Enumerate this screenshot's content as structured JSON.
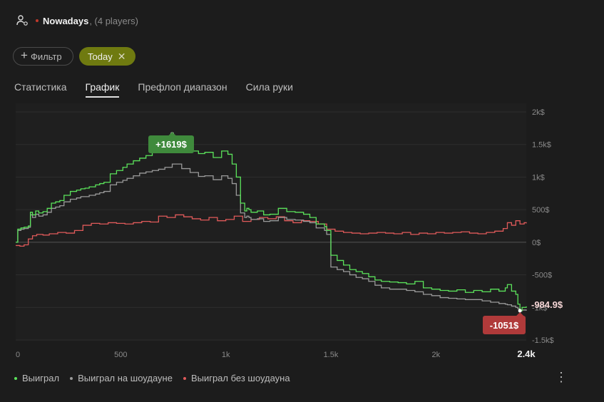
{
  "header": {
    "title": "Nowadays",
    "subtitle": ", (4 players)",
    "icon": "players-settings-icon"
  },
  "filters": {
    "filter_label": "Фильтр",
    "today_label": "Today"
  },
  "tabs": [
    {
      "label": "Статистика",
      "active": false
    },
    {
      "label": "График",
      "active": true
    },
    {
      "label": "Префлоп диапазон",
      "active": false
    },
    {
      "label": "Сила руки",
      "active": false
    }
  ],
  "legend": [
    {
      "label": "Выиграл",
      "color": "#5be35b"
    },
    {
      "label": "Выиграл на шоудауне",
      "color": "#9a9a9a"
    },
    {
      "label": "Выиграл без шоудауна",
      "color": "#e05a5a"
    }
  ],
  "chart_data": {
    "type": "line",
    "x_ticks": [
      "0",
      "500",
      "1k",
      "1.5k",
      "2k",
      "2.4k"
    ],
    "y_ticks": [
      "2k$",
      "1.5k$",
      "1k$",
      "500$",
      "0$",
      "-500$",
      "-1k$",
      "-1.5k$"
    ],
    "xlim": [
      0,
      2430
    ],
    "ylim": [
      -1500,
      2000
    ],
    "grid": true,
    "max_marker": {
      "x": 745,
      "y": 1619,
      "label": "+1619$"
    },
    "min_marker": {
      "x": 2400,
      "y": -1051,
      "label": "-1051$"
    },
    "end_label": "-984.9$",
    "series": [
      {
        "name": "Выиграл",
        "color": "#5be35b",
        "x": [
          0,
          10,
          25,
          40,
          60,
          70,
          80,
          95,
          110,
          130,
          150,
          170,
          190,
          210,
          230,
          260,
          290,
          310,
          330,
          350,
          380,
          400,
          420,
          450,
          480,
          510,
          530,
          560,
          590,
          620,
          650,
          680,
          710,
          745,
          790,
          830,
          870,
          900,
          940,
          980,
          1010,
          1030,
          1050,
          1070,
          1090,
          1100,
          1110,
          1120,
          1150,
          1180,
          1210,
          1250,
          1290,
          1330,
          1370,
          1400,
          1430,
          1470,
          1480,
          1500,
          1530,
          1560,
          1590,
          1620,
          1650,
          1680,
          1710,
          1740,
          1780,
          1820,
          1860,
          1900,
          1940,
          1980,
          2020,
          2060,
          2100,
          2140,
          2180,
          2220,
          2260,
          2300,
          2330,
          2340,
          2360,
          2380,
          2390,
          2400,
          2410,
          2430
        ],
        "y": [
          0,
          200,
          220,
          230,
          250,
          460,
          420,
          480,
          450,
          470,
          520,
          600,
          620,
          640,
          720,
          780,
          800,
          820,
          830,
          850,
          880,
          900,
          920,
          1050,
          1100,
          1150,
          1200,
          1250,
          1290,
          1330,
          1380,
          1420,
          1500,
          1619,
          1480,
          1400,
          1360,
          1380,
          1300,
          1400,
          1350,
          1200,
          1000,
          600,
          480,
          520,
          500,
          460,
          480,
          420,
          430,
          520,
          470,
          460,
          430,
          380,
          280,
          240,
          180,
          -200,
          -280,
          -350,
          -420,
          -450,
          -480,
          -530,
          -580,
          -600,
          -610,
          -620,
          -640,
          -600,
          -700,
          -720,
          -740,
          -750,
          -730,
          -770,
          -740,
          -760,
          -720,
          -750,
          -700,
          -650,
          -750,
          -800,
          -950,
          -1051,
          -1000,
          -985
        ]
      },
      {
        "name": "Выиграл на шоудауне",
        "color": "#9a9a9a",
        "x": [
          0,
          10,
          25,
          40,
          60,
          70,
          80,
          95,
          110,
          130,
          150,
          170,
          190,
          210,
          230,
          260,
          290,
          310,
          330,
          350,
          380,
          400,
          420,
          450,
          480,
          510,
          530,
          560,
          590,
          620,
          650,
          680,
          710,
          745,
          790,
          830,
          870,
          900,
          940,
          980,
          1010,
          1030,
          1050,
          1070,
          1090,
          1100,
          1110,
          1120,
          1150,
          1180,
          1210,
          1250,
          1290,
          1330,
          1370,
          1400,
          1430,
          1470,
          1480,
          1500,
          1530,
          1560,
          1590,
          1620,
          1650,
          1680,
          1710,
          1740,
          1780,
          1820,
          1860,
          1900,
          1940,
          1980,
          2020,
          2060,
          2100,
          2140,
          2180,
          2220,
          2260,
          2300,
          2330,
          2340,
          2360,
          2380,
          2390,
          2400,
          2410,
          2430
        ],
        "y": [
          0,
          180,
          200,
          210,
          230,
          420,
          380,
          430,
          400,
          420,
          460,
          520,
          540,
          560,
          620,
          660,
          680,
          700,
          700,
          720,
          740,
          760,
          780,
          880,
          920,
          950,
          980,
          1020,
          1060,
          1080,
          1100,
          1120,
          1150,
          1200,
          1130,
          1070,
          1010,
          1020,
          960,
          1020,
          980,
          900,
          720,
          450,
          380,
          400,
          380,
          350,
          360,
          320,
          330,
          380,
          350,
          340,
          320,
          300,
          220,
          180,
          120,
          -380,
          -420,
          -450,
          -500,
          -540,
          -560,
          -600,
          -660,
          -700,
          -720,
          -720,
          -740,
          -760,
          -800,
          -820,
          -850,
          -860,
          -870,
          -880,
          -880,
          -900,
          -920,
          -940,
          -950,
          -960,
          -980,
          -1000,
          -1020,
          -1051,
          -1040,
          -1050
        ]
      },
      {
        "name": "Выиграл без шоудауна",
        "color": "#e05a5a",
        "x": [
          0,
          20,
          40,
          60,
          80,
          100,
          130,
          160,
          200,
          240,
          280,
          320,
          360,
          400,
          440,
          480,
          520,
          560,
          600,
          640,
          680,
          720,
          760,
          800,
          840,
          880,
          920,
          960,
          1000,
          1040,
          1080,
          1120,
          1160,
          1200,
          1240,
          1280,
          1320,
          1360,
          1400,
          1440,
          1480,
          1520,
          1560,
          1600,
          1640,
          1680,
          1720,
          1760,
          1800,
          1840,
          1880,
          1920,
          1960,
          2000,
          2040,
          2080,
          2120,
          2160,
          2200,
          2240,
          2280,
          2320,
          2340,
          2360,
          2380,
          2400,
          2420,
          2430
        ],
        "y": [
          -50,
          -60,
          -40,
          50,
          100,
          120,
          110,
          130,
          150,
          140,
          180,
          260,
          290,
          280,
          300,
          290,
          280,
          300,
          320,
          310,
          400,
          380,
          420,
          390,
          360,
          340,
          380,
          330,
          350,
          400,
          320,
          350,
          380,
          360,
          390,
          330,
          300,
          330,
          320,
          280,
          200,
          170,
          150,
          140,
          130,
          140,
          150,
          140,
          130,
          150,
          120,
          140,
          130,
          150,
          140,
          150,
          160,
          140,
          130,
          150,
          170,
          210,
          300,
          260,
          330,
          280,
          300,
          290
        ]
      }
    ]
  }
}
